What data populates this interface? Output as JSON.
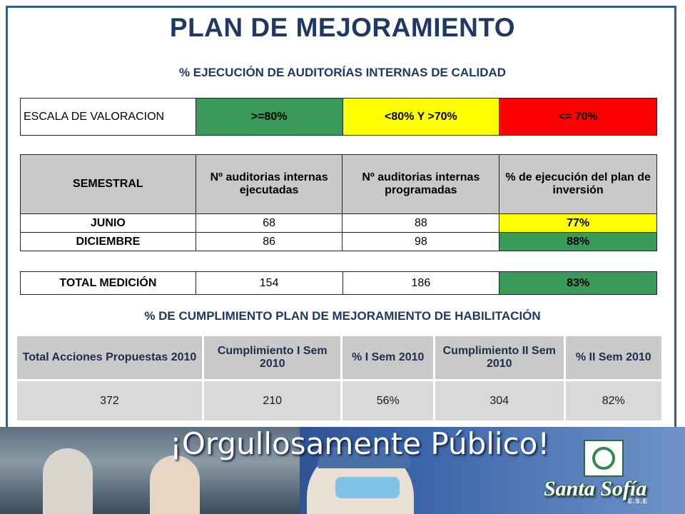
{
  "title": "PLAN DE MEJORAMIENTO",
  "subtitle_audits": "% EJECUCIÓN DE AUDITORÍAS INTERNAS DE CALIDAD",
  "scale": {
    "label": "ESCALA DE VALORACION",
    "levels": [
      {
        "label": ">=80%",
        "color": "#3a9a5a"
      },
      {
        "label": "<80% Y >70%",
        "color": "#ffff00"
      },
      {
        "label": "<= 70%",
        "color": "#ff0000"
      }
    ]
  },
  "audits": {
    "headers": [
      "SEMESTRAL",
      "Nº auditorias internas ejecutadas",
      "Nº auditorias internas programadas",
      "% de ejecución del plan de inversión"
    ],
    "rows": [
      {
        "period": "JUNIO",
        "executed": "68",
        "scheduled": "88",
        "pct": "77%",
        "color": "#ffff00"
      },
      {
        "period": "DICIEMBRE",
        "executed": "86",
        "scheduled": "98",
        "pct": "88%",
        "color": "#3a9a5a"
      }
    ],
    "total": {
      "label": "TOTAL MEDICIÓN",
      "executed": "154",
      "scheduled": "186",
      "pct": "83%",
      "color": "#3a9a5a"
    }
  },
  "subtitle_habilitacion": "% DE CUMPLIMIENTO PLAN DE MEJORAMIENTO DE HABILITACIÓN",
  "habilitacion": {
    "headers": [
      "Total Acciones Propuestas 2010",
      "Cumplimiento I Sem 2010",
      "%  I Sem 2010",
      "Cumplimiento II Sem 2010",
      "%  II Sem 2010"
    ],
    "values": [
      "372",
      "210",
      "56%",
      "304",
      "82%"
    ]
  },
  "banner": {
    "slogan": "¡Orgullosamente Público!",
    "logo_name": "Santa Sofía",
    "logo_sub": "E.S.E"
  }
}
